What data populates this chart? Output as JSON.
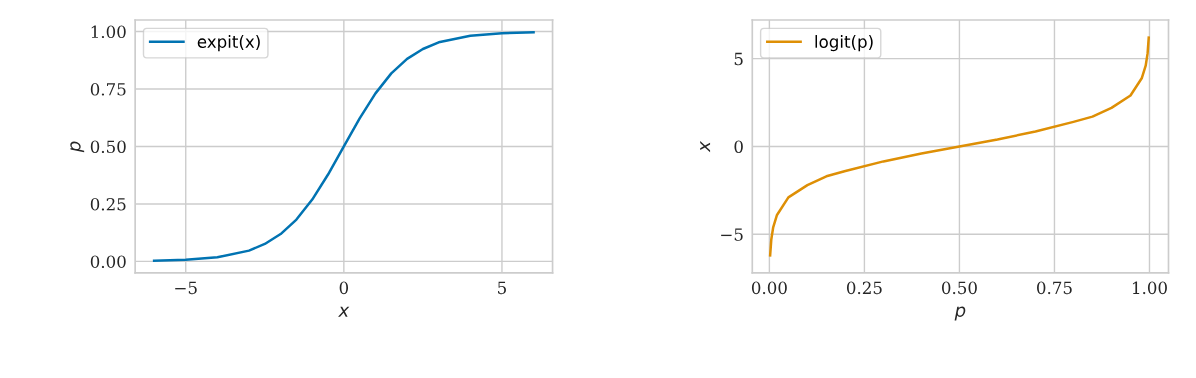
{
  "chart_data": [
    {
      "type": "line",
      "xlabel": "x",
      "ylabel": "p",
      "legend": "top left",
      "grid": true,
      "xlim": [
        -6.6,
        6.6
      ],
      "ylim": [
        -0.05,
        1.05
      ],
      "xticks": [
        {
          "value": -5,
          "label": "−5"
        },
        0,
        5
      ],
      "yticks": [
        {
          "value": 0,
          "label": "0.00"
        },
        {
          "value": 0.25,
          "label": "0.25"
        },
        {
          "value": 0.5,
          "label": "0.50"
        },
        {
          "value": 0.75,
          "label": "0.75"
        },
        {
          "value": 1,
          "label": "1.00"
        }
      ],
      "series": [
        {
          "name": "expit(x)",
          "color": "#0173b2",
          "x": [
            -6,
            -5,
            -4,
            -3,
            -2.5,
            -2,
            -1.5,
            -1,
            -0.5,
            0,
            0.5,
            1,
            1.5,
            2,
            2.5,
            3,
            4,
            5,
            6
          ],
          "values": [
            0.003,
            0.007,
            0.018,
            0.047,
            0.076,
            0.119,
            0.182,
            0.269,
            0.378,
            0.5,
            0.622,
            0.731,
            0.818,
            0.881,
            0.924,
            0.953,
            0.982,
            0.993,
            0.997
          ]
        }
      ]
    },
    {
      "type": "line",
      "xlabel": "p",
      "ylabel": "x",
      "legend": "top left",
      "grid": true,
      "xlim": [
        -0.045,
        1.05
      ],
      "ylim": [
        -7.2,
        7.2
      ],
      "xticks": [
        {
          "value": 0,
          "label": "0.00"
        },
        {
          "value": 0.25,
          "label": "0.25"
        },
        {
          "value": 0.5,
          "label": "0.50"
        },
        {
          "value": 0.75,
          "label": "0.75"
        },
        {
          "value": 1,
          "label": "1.00"
        }
      ],
      "yticks": [
        {
          "value": -5,
          "label": "−5"
        },
        0,
        5
      ],
      "series": [
        {
          "name": "logit(p)",
          "color": "#de8f05",
          "x": [
            0.002,
            0.005,
            0.01,
            0.02,
            0.05,
            0.1,
            0.15,
            0.2,
            0.3,
            0.4,
            0.5,
            0.6,
            0.7,
            0.8,
            0.85,
            0.9,
            0.95,
            0.98,
            0.99,
            0.995,
            0.998
          ],
          "values": [
            -6.2,
            -5.3,
            -4.6,
            -3.9,
            -2.9,
            -2.2,
            -1.7,
            -1.4,
            -0.85,
            -0.4,
            0,
            0.4,
            0.85,
            1.4,
            1.7,
            2.2,
            2.9,
            3.9,
            4.6,
            5.3,
            6.2
          ]
        }
      ]
    }
  ]
}
